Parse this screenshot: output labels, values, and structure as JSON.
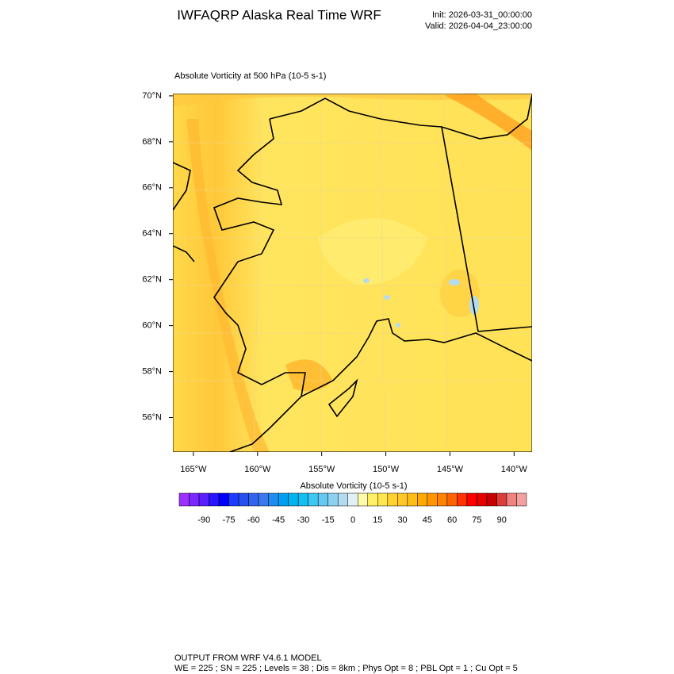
{
  "title": "IWFAQRP Alaska Real Time WRF",
  "init": "Init: 2026-03-31_00:00:00",
  "valid": "Valid: 2026-04-04_23:00:00",
  "map": {
    "subtitle": "Absolute Vorticity at 500 hPa   (10-5 s-1)",
    "latlim": [
      54.5,
      70.1
    ],
    "lat_ticks": [
      {
        "value": 70,
        "label": "70°N"
      },
      {
        "value": 68,
        "label": "68°N"
      },
      {
        "value": 66,
        "label": "66°N"
      },
      {
        "value": 64,
        "label": "64°N"
      },
      {
        "value": 62,
        "label": "62°N"
      },
      {
        "value": 60,
        "label": "60°N"
      },
      {
        "value": 58,
        "label": "58°N"
      },
      {
        "value": 56,
        "label": "56°N"
      }
    ],
    "lonlim": [
      -166.6,
      -138.6
    ],
    "lon_ticks": [
      {
        "value": -165,
        "label": "165°W"
      },
      {
        "value": -160,
        "label": "160°W"
      },
      {
        "value": -155,
        "label": "155°W"
      },
      {
        "value": -150,
        "label": "150°W"
      },
      {
        "value": -145,
        "label": "145°W"
      },
      {
        "value": -140,
        "label": "140°W"
      }
    ]
  },
  "colorbar": {
    "label": "Absolute Vorticity  (10-5 s-1)",
    "clim": [
      -105,
      105
    ],
    "colors": [
      "#9b30ff",
      "#7a28ff",
      "#5a1eff",
      "#2814ff",
      "#0000ff",
      "#1e3cff",
      "#2850f0",
      "#3264f0",
      "#3c78f0",
      "#1e8cf0",
      "#00a0f0",
      "#00b4f0",
      "#14bef0",
      "#3cc8f0",
      "#64c8f0",
      "#8cd2f0",
      "#b4dcf0",
      "#e1f0f5",
      "#fffaaa",
      "#fff064",
      "#ffe650",
      "#ffd232",
      "#ffc828",
      "#ffbe14",
      "#ffaa00",
      "#ff9600",
      "#ff8200",
      "#ff6400",
      "#ff3200",
      "#ff0000",
      "#e60000",
      "#c80000",
      "#dc3c3c",
      "#f08282",
      "#f5a0a0"
    ],
    "ticks": [
      -90,
      -75,
      -60,
      -45,
      -30,
      -15,
      0,
      15,
      30,
      45,
      60,
      75,
      90
    ]
  },
  "footer": {
    "line1": "OUTPUT FROM WRF V4.6.1 MODEL",
    "line2": "WE = 225 ; SN = 225 ; Levels = 38 ; Dis = 8km ; Phys Opt = 8 ; PBL Opt = 1 ; Cu Opt = 5"
  }
}
